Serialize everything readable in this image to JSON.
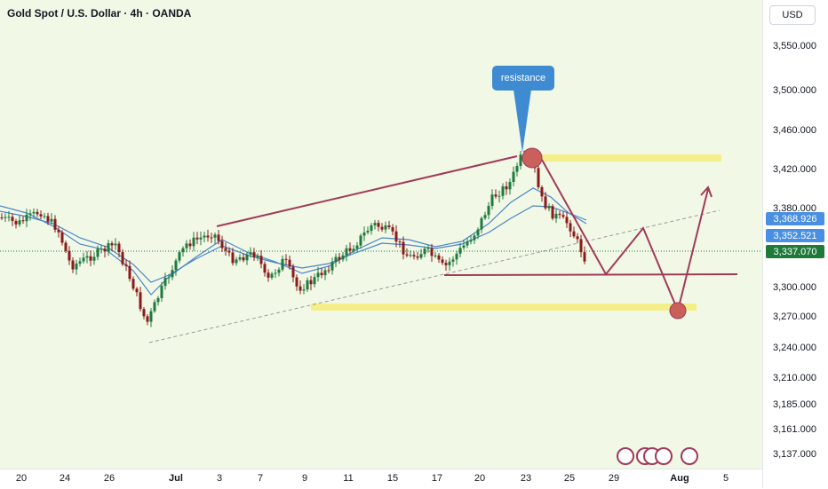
{
  "header": {
    "title": "Gold Spot / U.S. Dollar · 4h · OANDA"
  },
  "price_axis": {
    "currency": "USD",
    "ticks": [
      "3,550.000",
      "3,500.000",
      "3,460.000",
      "3,420.000",
      "3,380.000",
      "3,300.000",
      "3,270.000",
      "3,240.000",
      "3,210.000",
      "3,185.000",
      "3,161.000",
      "3,137.000"
    ]
  },
  "price_labels": [
    {
      "value": "3,368.926",
      "bg": "#4a90e2",
      "fg": "#ffffff"
    },
    {
      "value": "3,352.521",
      "bg": "#4a90e2",
      "fg": "#ffffff"
    },
    {
      "value": "3,337.070",
      "bg": "#1f7a3a",
      "fg": "#ffffff"
    }
  ],
  "time_axis": {
    "ticks": [
      "20",
      "24",
      "26",
      "Jul",
      "3",
      "7",
      "9",
      "11",
      "15",
      "17",
      "20",
      "23",
      "25",
      "29",
      "Aug",
      "5"
    ]
  },
  "annotation": {
    "resistance_label": "resistance"
  },
  "colors": {
    "bull": "#1e7a3d",
    "bear": "#8b1a1a",
    "ma": "#4a86c8",
    "trend": "#a03a5a",
    "highlight": "#f5ef8a",
    "callout": "#3f8bd1"
  }
}
